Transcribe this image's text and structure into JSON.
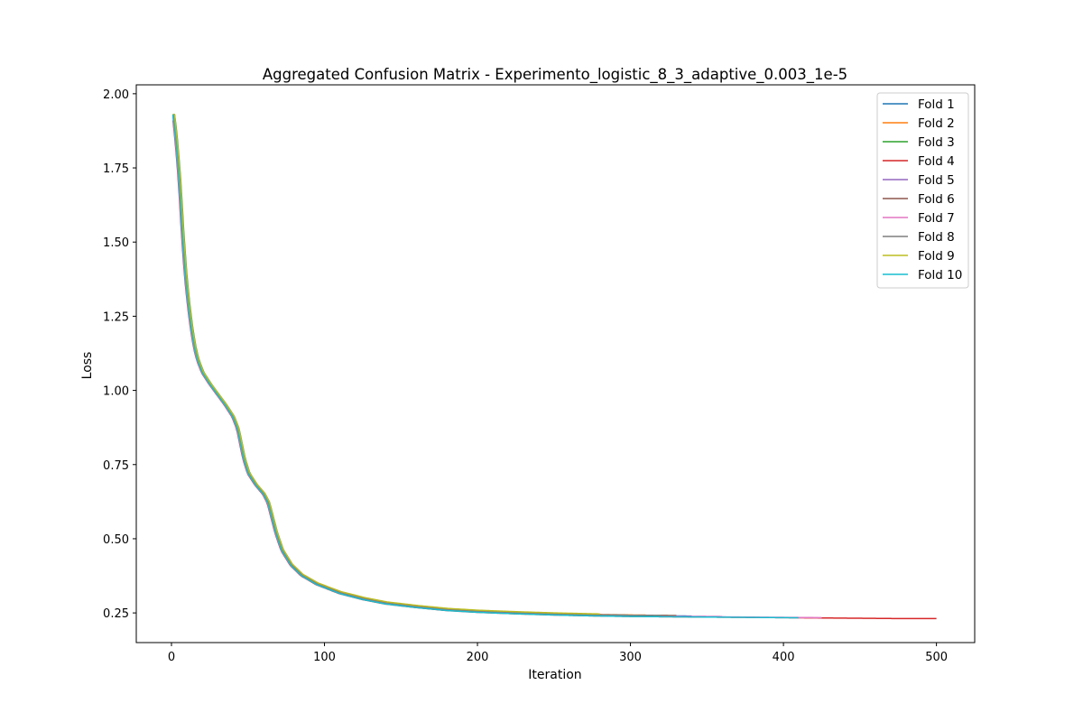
{
  "chart_data": {
    "type": "line",
    "title": "Aggregated Confusion Matrix - Experimento_logistic_8_3_adaptive_0.003_1e-5",
    "xlabel": "Iteration",
    "ylabel": "Loss",
    "xlim": [
      -23,
      525
    ],
    "ylim": [
      0.15,
      2.03
    ],
    "xticks": [
      0,
      100,
      200,
      300,
      400,
      500
    ],
    "yticks": [
      0.25,
      0.5,
      0.75,
      1.0,
      1.25,
      1.5,
      1.75,
      2.0
    ],
    "xtick_labels": [
      "0",
      "100",
      "200",
      "300",
      "400",
      "500"
    ],
    "ytick_labels": [
      "0.25",
      "0.50",
      "0.75",
      "1.00",
      "1.25",
      "1.50",
      "1.75",
      "2.00"
    ],
    "grid": false,
    "legend_position": "top-right",
    "base_curve": [
      [
        1,
        1.93
      ],
      [
        3,
        1.83
      ],
      [
        5,
        1.7
      ],
      [
        7,
        1.52
      ],
      [
        9,
        1.38
      ],
      [
        11,
        1.28
      ],
      [
        13,
        1.2
      ],
      [
        15,
        1.14
      ],
      [
        17,
        1.1
      ],
      [
        20,
        1.06
      ],
      [
        25,
        1.02
      ],
      [
        30,
        0.985
      ],
      [
        35,
        0.95
      ],
      [
        40,
        0.91
      ],
      [
        43,
        0.87
      ],
      [
        45,
        0.82
      ],
      [
        47,
        0.77
      ],
      [
        50,
        0.72
      ],
      [
        55,
        0.68
      ],
      [
        60,
        0.65
      ],
      [
        63,
        0.62
      ],
      [
        65,
        0.58
      ],
      [
        68,
        0.52
      ],
      [
        72,
        0.46
      ],
      [
        78,
        0.41
      ],
      [
        85,
        0.375
      ],
      [
        95,
        0.345
      ],
      [
        110,
        0.315
      ],
      [
        125,
        0.295
      ],
      [
        140,
        0.28
      ],
      [
        160,
        0.268
      ],
      [
        180,
        0.258
      ],
      [
        200,
        0.252
      ],
      [
        225,
        0.247
      ],
      [
        250,
        0.243
      ],
      [
        275,
        0.24
      ],
      [
        300,
        0.238
      ],
      [
        325,
        0.237
      ],
      [
        350,
        0.236
      ],
      [
        375,
        0.235
      ],
      [
        400,
        0.234
      ],
      [
        425,
        0.233
      ],
      [
        450,
        0.232
      ],
      [
        475,
        0.231
      ],
      [
        500,
        0.231
      ]
    ],
    "series": [
      {
        "name": "Fold 1",
        "color": "#1f77b4",
        "end_iteration": 340,
        "shift": 0.0,
        "offset": 0.003
      },
      {
        "name": "Fold 2",
        "color": "#ff7f0e",
        "end_iteration": 310,
        "shift": 0.6,
        "offset": 0.005
      },
      {
        "name": "Fold 3",
        "color": "#2ca02c",
        "end_iteration": 330,
        "shift": 1.2,
        "offset": 0.004
      },
      {
        "name": "Fold 4",
        "color": "#d62728",
        "end_iteration": 500,
        "shift": -0.4,
        "offset": 0.0
      },
      {
        "name": "Fold 5",
        "color": "#9467bd",
        "end_iteration": 360,
        "shift": 0.3,
        "offset": 0.002
      },
      {
        "name": "Fold 6",
        "color": "#8c564b",
        "end_iteration": 330,
        "shift": 0.8,
        "offset": 0.004
      },
      {
        "name": "Fold 7",
        "color": "#e377c2",
        "end_iteration": 425,
        "shift": -0.2,
        "offset": 0.001
      },
      {
        "name": "Fold 8",
        "color": "#7f7f7f",
        "end_iteration": 320,
        "shift": 0.5,
        "offset": 0.004
      },
      {
        "name": "Fold 9",
        "color": "#bcbd22",
        "end_iteration": 280,
        "shift": 1.0,
        "offset": 0.007
      },
      {
        "name": "Fold 10",
        "color": "#17becf",
        "end_iteration": 410,
        "shift": 0.1,
        "offset": 0.0
      }
    ]
  }
}
